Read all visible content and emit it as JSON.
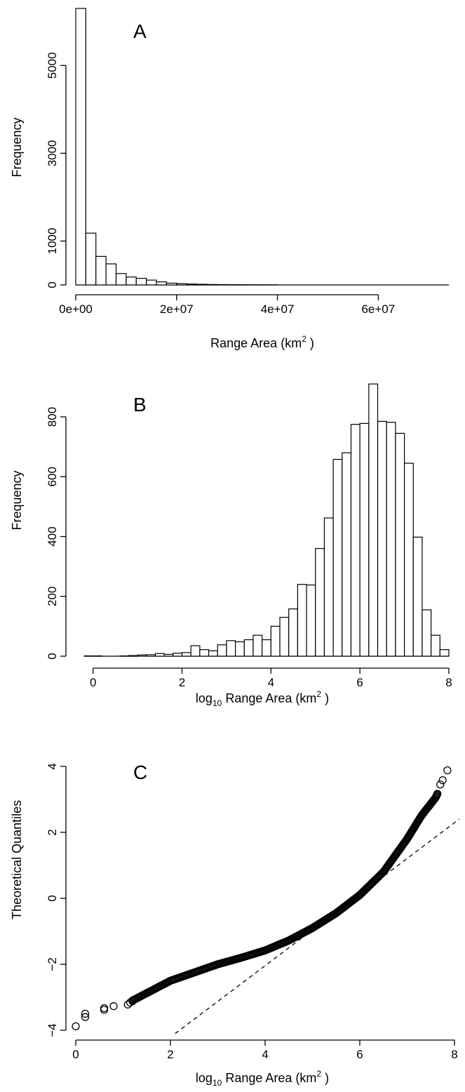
{
  "chart_data": [
    {
      "type": "bar",
      "panel": "A",
      "title": "",
      "xlabel": "Range Area (km",
      "xlabel_sup": "2",
      "xlabel_tail": " )",
      "ylabel": "Frequency",
      "xlim": [
        0,
        74000000
      ],
      "ylim": [
        0,
        6300
      ],
      "x_ticks": [
        0,
        20000000,
        40000000,
        60000000
      ],
      "x_tick_labels": [
        "0e+00",
        "2e+07",
        "4e+07",
        "6e+07"
      ],
      "y_ticks": [
        0,
        1000,
        3000,
        5000
      ],
      "y_tick_labels": [
        "0",
        "1000",
        "3000",
        "5000"
      ],
      "bin_start": 0,
      "bin_width": 2000000,
      "values": [
        6300,
        1180,
        650,
        480,
        260,
        180,
        150,
        110,
        70,
        40,
        30,
        20,
        15,
        10,
        8,
        6,
        5,
        4,
        3,
        2
      ],
      "grid": false,
      "legend": "none"
    },
    {
      "type": "bar",
      "panel": "B",
      "title": "",
      "xlabel_pre": "log",
      "xlabel_sub": "10",
      "xlabel": " Range Area (km",
      "xlabel_sup": "2",
      "xlabel_tail": " )",
      "ylabel": "Frequency",
      "xlim": [
        -0.2,
        8
      ],
      "ylim": [
        0,
        910
      ],
      "x_ticks": [
        0,
        2,
        4,
        6,
        8
      ],
      "x_tick_labels": [
        "0",
        "2",
        "4",
        "6",
        "8"
      ],
      "y_ticks": [
        0,
        200,
        400,
        600,
        800
      ],
      "y_tick_labels": [
        "0",
        "200",
        "400",
        "600",
        "800"
      ],
      "bin_start": -0.2,
      "bin_width": 0.2,
      "values": [
        1,
        1,
        0,
        0,
        1,
        2,
        4,
        5,
        9,
        6,
        10,
        12,
        35,
        22,
        18,
        38,
        52,
        48,
        55,
        70,
        55,
        100,
        130,
        158,
        240,
        238,
        360,
        462,
        658,
        680,
        775,
        778,
        910,
        785,
        782,
        745,
        645,
        398,
        155,
        70,
        22
      ],
      "grid": false,
      "legend": "none"
    },
    {
      "type": "scatter",
      "panel": "C",
      "title": "",
      "xlabel_pre": "log",
      "xlabel_sub": "10",
      "xlabel": " Range Area (km",
      "xlabel_sup": "2",
      "xlabel_tail": " )",
      "ylabel": "Theoretical Quantiles",
      "xlim": [
        0,
        8
      ],
      "ylim": [
        -4,
        4
      ],
      "x_ticks": [
        0,
        2,
        4,
        6,
        8
      ],
      "x_tick_labels": [
        "0",
        "2",
        "4",
        "6",
        "8"
      ],
      "y_ticks": [
        -4,
        -2,
        0,
        2,
        4
      ],
      "y_tick_labels": [
        "−4",
        "−2",
        "0",
        "2",
        "4"
      ],
      "isolated_points": [
        [
          0.0,
          -3.88
        ],
        [
          0.2,
          -3.5
        ],
        [
          0.2,
          -3.6
        ],
        [
          0.6,
          -3.33
        ],
        [
          0.6,
          -3.38
        ],
        [
          0.8,
          -3.27
        ],
        [
          1.1,
          -3.22
        ],
        [
          1.15,
          -3.16
        ],
        [
          1.2,
          -3.12
        ],
        [
          7.7,
          3.45
        ],
        [
          7.75,
          3.58
        ],
        [
          7.85,
          3.88
        ]
      ],
      "curve_knots": [
        [
          1.2,
          -3.1
        ],
        [
          1.6,
          -2.8
        ],
        [
          2.0,
          -2.5
        ],
        [
          2.5,
          -2.25
        ],
        [
          3.0,
          -2.0
        ],
        [
          3.5,
          -1.8
        ],
        [
          4.0,
          -1.58
        ],
        [
          4.5,
          -1.28
        ],
        [
          5.0,
          -0.9
        ],
        [
          5.5,
          -0.45
        ],
        [
          6.0,
          0.1
        ],
        [
          6.5,
          0.8
        ],
        [
          7.0,
          1.8
        ],
        [
          7.3,
          2.5
        ],
        [
          7.6,
          3.05
        ],
        [
          7.65,
          3.2
        ]
      ],
      "reference_line": [
        [
          2.1,
          -4.1
        ],
        [
          8.1,
          2.4
        ]
      ],
      "grid": false,
      "legend": "none"
    }
  ],
  "panels": [
    {
      "letter": "A"
    },
    {
      "letter": "B"
    },
    {
      "letter": "C"
    }
  ]
}
